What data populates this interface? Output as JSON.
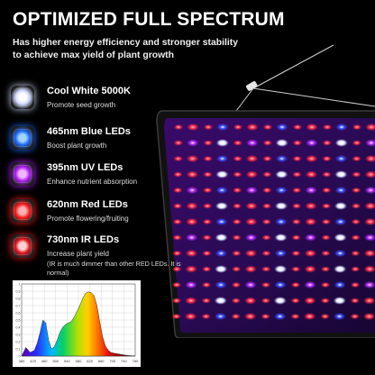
{
  "header": {
    "title": "OPTIMIZED FULL SPECTRUM",
    "subtitle": "Has higher energy efficiency and stronger stability to achieve max yield of plant growth"
  },
  "leds": [
    {
      "name": "Cool White 5000K",
      "desc": "Promote seed growth",
      "core": "#ffffff",
      "glow": "#cfd8ff",
      "icon": "white-led-icon"
    },
    {
      "name": "465nm Blue LEDs",
      "desc": "Boost plant growth",
      "core": "#9fd4ff",
      "glow": "#1e6bff",
      "icon": "blue-led-icon"
    },
    {
      "name": "395nm UV LEDs",
      "desc": "Enhance nutrient absorption",
      "core": "#f0b6ff",
      "glow": "#b11dff",
      "icon": "uv-led-icon"
    },
    {
      "name": "620nm Red LEDs",
      "desc": "Promote flowering/fruiting",
      "core": "#ffb0b0",
      "glow": "#ff1a1a",
      "icon": "red-led-icon"
    },
    {
      "name": "730nm IR LEDs",
      "desc": "Increase plant yield",
      "note": "(IR is much dimmer than other RED LEDs. It is normal)",
      "core": "#ffd0d0",
      "glow": "#e0161c",
      "icon": "ir-led-icon"
    }
  ],
  "chart_data": {
    "type": "area",
    "x": [
      380,
      395,
      410,
      425,
      435,
      445,
      455,
      465,
      475,
      485,
      495,
      505,
      515,
      525,
      535,
      545,
      555,
      565,
      575,
      585,
      595,
      605,
      615,
      625,
      635,
      645,
      655,
      665,
      675,
      685,
      695,
      705,
      720,
      735,
      750,
      780
    ],
    "y": [
      0.0,
      0.12,
      0.05,
      0.08,
      0.18,
      0.33,
      0.5,
      0.46,
      0.22,
      0.1,
      0.13,
      0.22,
      0.33,
      0.4,
      0.44,
      0.46,
      0.48,
      0.54,
      0.62,
      0.7,
      0.8,
      0.87,
      0.89,
      0.88,
      0.84,
      0.7,
      0.48,
      0.27,
      0.14,
      0.08,
      0.05,
      0.04,
      0.03,
      0.02,
      0.01,
      0.0
    ],
    "xlim": [
      380,
      780
    ],
    "ylim": [
      0,
      1
    ],
    "x_ticks": [
      "380",
      "420",
      "460",
      "500",
      "540",
      "580",
      "620",
      "660",
      "700",
      "740",
      "780"
    ],
    "y_ticks": [
      "0",
      "0.1",
      "0.2",
      "0.3",
      "0.4",
      "0.5",
      "0.6",
      "0.7",
      "0.8",
      "0.9",
      "1"
    ],
    "grid": true
  }
}
